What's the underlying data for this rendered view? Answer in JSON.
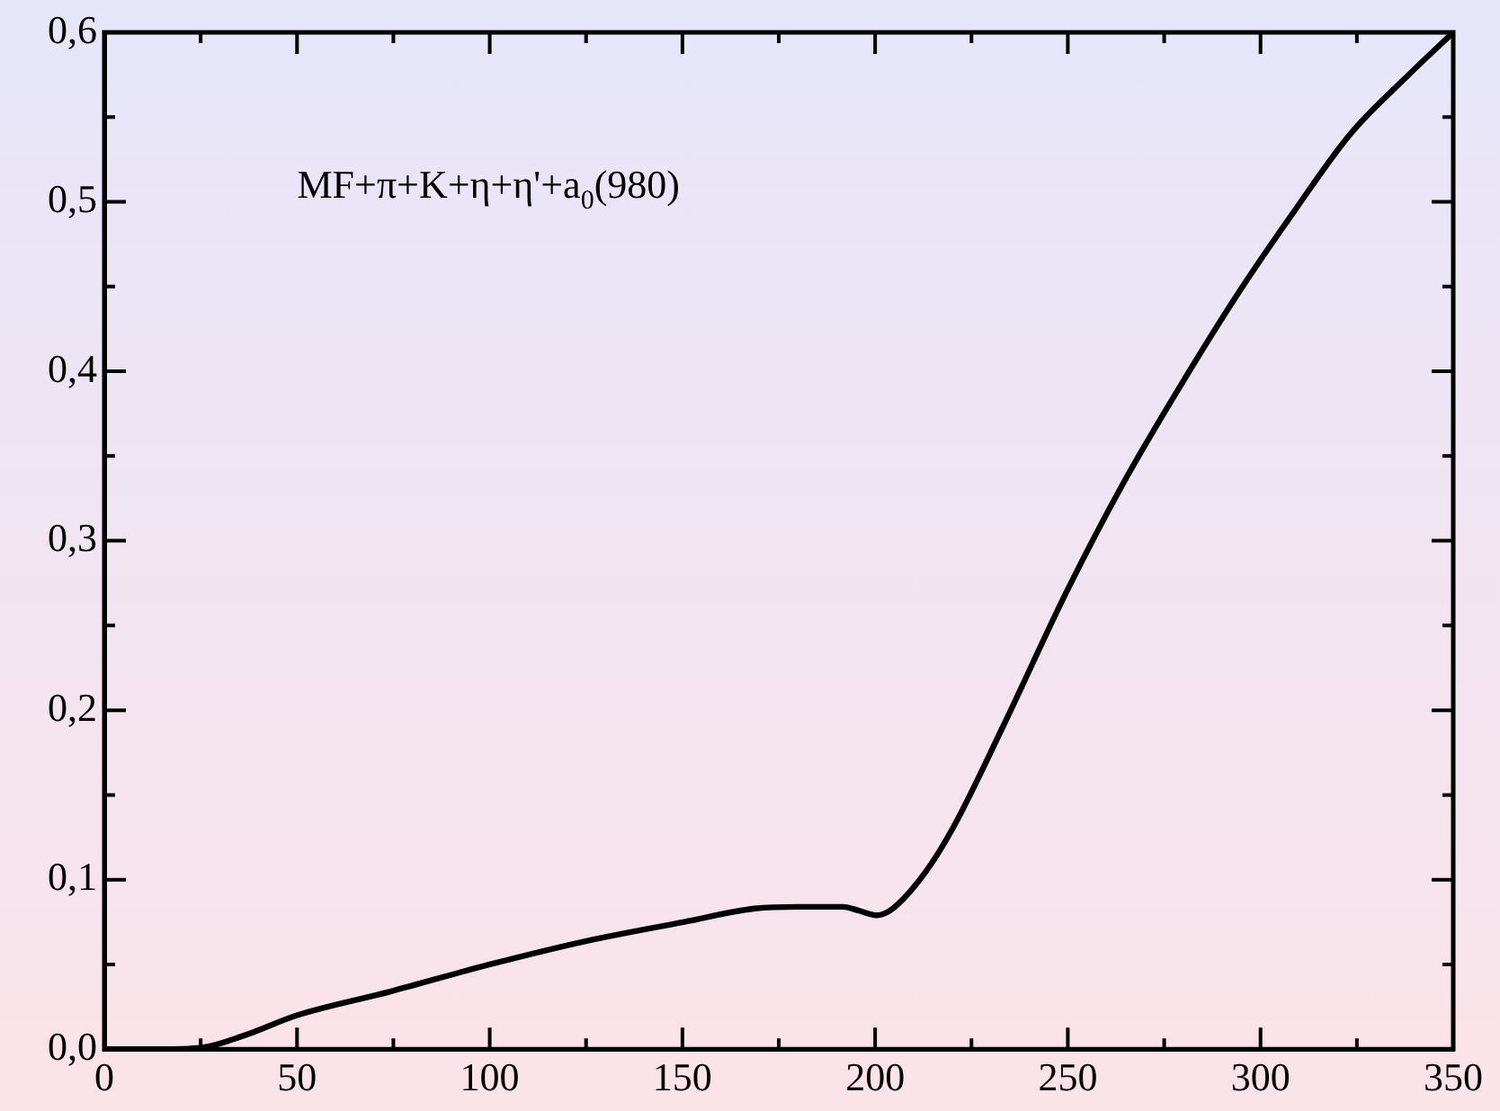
{
  "chart_data": {
    "type": "line",
    "annotations": [
      "MF+π+K+η+η'+a$_{0}$(980)"
    ],
    "series": [
      {
        "color": "#000000",
        "x": [
          0,
          13.7,
          25.3,
          36.2,
          50,
          74.2,
          100,
          125.4,
          150.2,
          168.8,
          179.8,
          191.7,
          195.4,
          200.4,
          204.6,
          212.9,
          220.3,
          233.1,
          249.7,
          264.4,
          279.1,
          293.9,
          308.6,
          323.3,
          338,
          350
        ],
        "values": [
          0,
          0,
          0.001,
          0.008,
          0.02,
          0.034,
          0.05,
          0.064,
          0.075,
          0.083,
          0.084,
          0.084,
          0.082,
          0.079,
          0.083,
          0.104,
          0.131,
          0.19,
          0.27,
          0.334,
          0.391,
          0.445,
          0.494,
          0.54,
          0.574,
          0.6
        ]
      }
    ],
    "xlim": [
      0,
      350
    ],
    "ylim": [
      0,
      0.6
    ],
    "xticks": [
      0,
      {
        "value": 25,
        "label": null
      },
      50,
      {
        "value": 75,
        "label": null
      },
      100,
      {
        "value": 125,
        "label": null
      },
      150,
      {
        "value": 175,
        "label": null
      },
      200,
      {
        "value": 225,
        "label": null
      },
      250,
      {
        "value": 275,
        "label": null
      },
      300,
      {
        "value": 325,
        "label": null
      },
      350
    ],
    "yticks": [
      {
        "value": 0,
        "label": "0,0"
      },
      {
        "value": 0.05,
        "label": null
      },
      {
        "value": 0.1,
        "label": "0,1"
      },
      {
        "value": 0.15,
        "label": null
      },
      {
        "value": 0.2,
        "label": "0,2"
      },
      {
        "value": 0.25,
        "label": null
      },
      {
        "value": 0.3,
        "label": "0,3"
      },
      {
        "value": 0.35,
        "label": null
      },
      {
        "value": 0.4,
        "label": "0,4"
      },
      {
        "value": 0.45,
        "label": null
      },
      {
        "value": 0.5,
        "label": "0,5"
      },
      {
        "value": 0.55,
        "label": null
      },
      {
        "value": 0.6,
        "label": "0,6"
      }
    ],
    "grid": false,
    "legend": false,
    "marker": "none",
    "line_style": "solid"
  }
}
